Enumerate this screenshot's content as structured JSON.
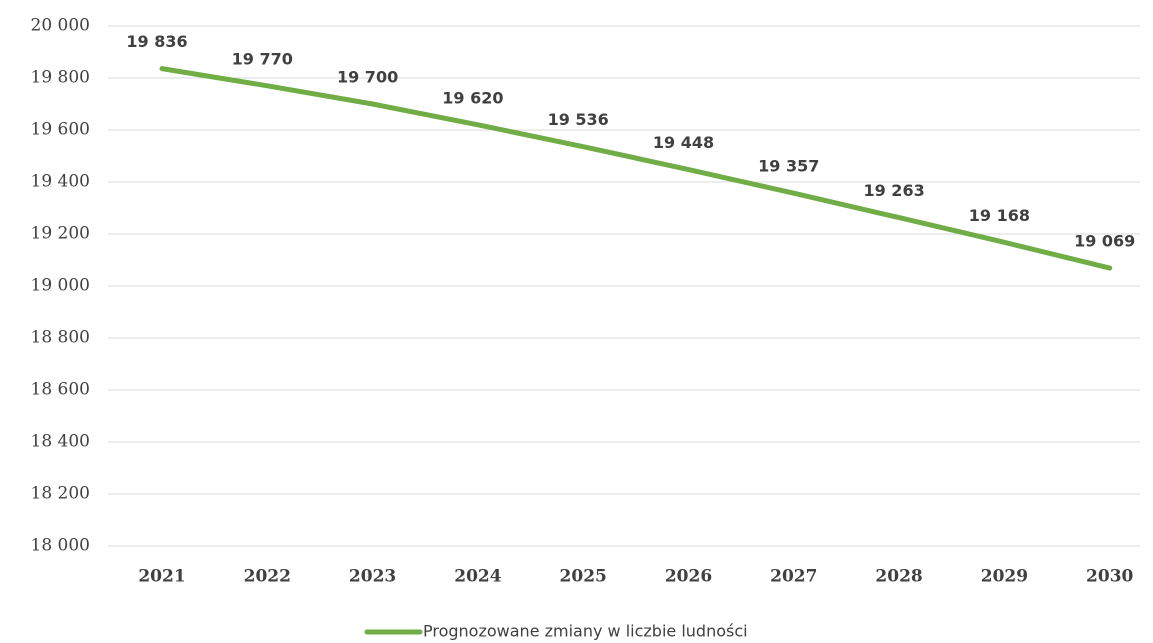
{
  "chart_data": {
    "type": "line",
    "categories": [
      "2021",
      "2022",
      "2023",
      "2024",
      "2025",
      "2026",
      "2027",
      "2028",
      "2029",
      "2030"
    ],
    "series": [
      {
        "name": "Prognozowane zmiany w liczbie ludności",
        "color": "#70ad47",
        "values": [
          19836,
          19770,
          19700,
          19620,
          19536,
          19448,
          19357,
          19263,
          19168,
          19069
        ],
        "value_labels": [
          "19 836",
          "19 770",
          "19 700",
          "19 620",
          "19 536",
          "19 448",
          "19 357",
          "19 263",
          "19 168",
          "19 069"
        ]
      }
    ],
    "ylim": [
      18000,
      20000
    ],
    "yticks": [
      {
        "value": 18000,
        "label": "18 000"
      },
      {
        "value": 18200,
        "label": "18 200"
      },
      {
        "value": 18400,
        "label": "18 400"
      },
      {
        "value": 18600,
        "label": "18 600"
      },
      {
        "value": 18800,
        "label": "18 800"
      },
      {
        "value": 19000,
        "label": "19 000"
      },
      {
        "value": 19200,
        "label": "19 200"
      },
      {
        "value": 19400,
        "label": "19 400"
      },
      {
        "value": 19600,
        "label": "19 600"
      },
      {
        "value": 19800,
        "label": "19 800"
      },
      {
        "value": 20000,
        "label": "20 000"
      }
    ],
    "grid": true,
    "legend": "bottom"
  }
}
